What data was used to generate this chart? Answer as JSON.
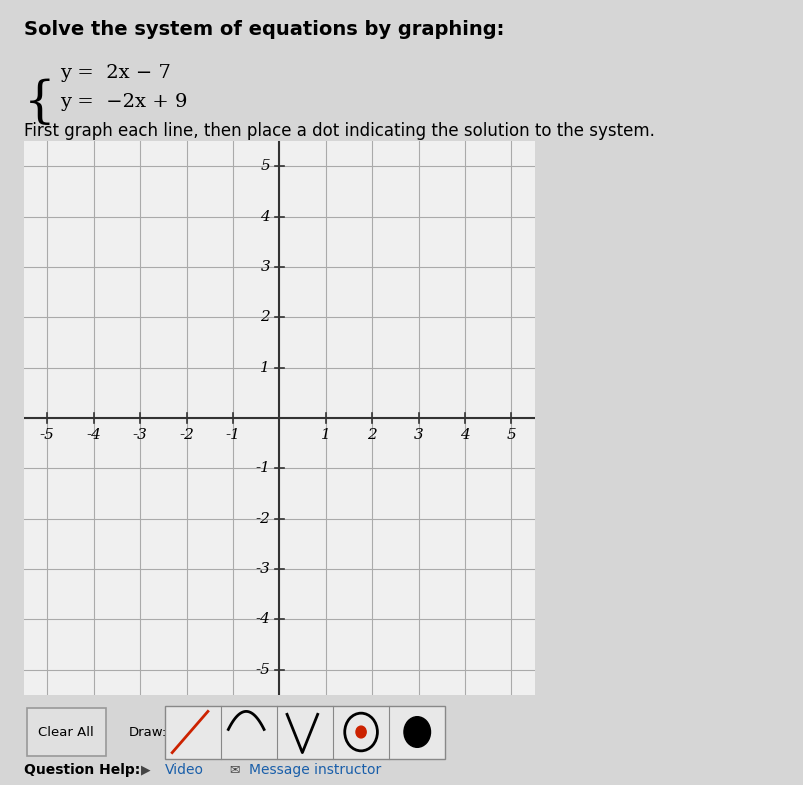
{
  "title_text": "Solve the system of equations by graphing:",
  "eq1": "y =  2x − 7",
  "eq2": "y =  −2x + 9",
  "instruction": "First graph each line, then place a dot indicating the solution to the system.",
  "xlim": [
    -5.5,
    5.5
  ],
  "ylim": [
    -5.5,
    5.5
  ],
  "ticks": [
    -5,
    -4,
    -3,
    -2,
    -1,
    1,
    2,
    3,
    4,
    5
  ],
  "grid_color": "#aaaaaa",
  "axis_color": "#333333",
  "bg_color": "#d6d6d6",
  "plot_bg_color": "#f0f0f0",
  "title_fontsize": 14,
  "eq_fontsize": 14,
  "instruction_fontsize": 12,
  "tick_fontsize": 11
}
